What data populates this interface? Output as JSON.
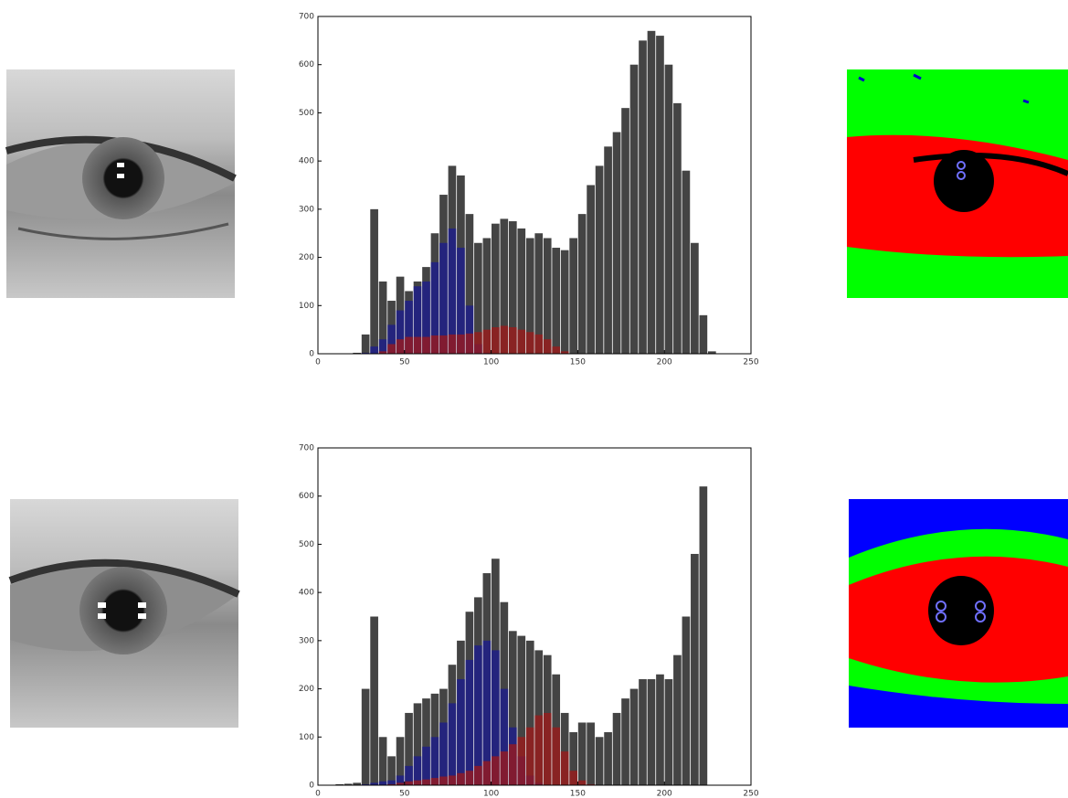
{
  "chart_data": [
    {
      "type": "histogram",
      "bins": [
        0,
        5,
        10,
        15,
        20,
        25,
        30,
        35,
        40,
        45,
        50,
        55,
        60,
        65,
        70,
        75,
        80,
        85,
        90,
        95,
        100,
        105,
        110,
        115,
        120,
        125,
        130,
        135,
        140,
        145,
        150,
        155,
        160,
        165,
        170,
        175,
        180,
        185,
        190,
        195,
        200,
        205,
        210,
        215,
        220,
        225,
        230,
        235,
        240,
        245,
        250
      ],
      "series": [
        {
          "color": "#3a3a3a",
          "values": [
            0,
            0,
            0,
            0,
            2,
            40,
            300,
            150,
            110,
            160,
            130,
            150,
            180,
            250,
            330,
            390,
            370,
            290,
            230,
            240,
            270,
            280,
            275,
            260,
            240,
            250,
            240,
            220,
            215,
            240,
            290,
            350,
            390,
            430,
            460,
            510,
            600,
            650,
            670,
            660,
            600,
            520,
            380,
            230,
            80,
            5,
            0,
            0,
            0,
            0
          ]
        },
        {
          "color": "#1a1a90",
          "values": [
            0,
            0,
            0,
            0,
            0,
            2,
            15,
            30,
            60,
            90,
            110,
            140,
            150,
            190,
            230,
            260,
            220,
            100,
            20,
            2,
            0,
            0,
            0,
            0,
            0,
            0,
            0,
            0,
            0,
            0,
            0,
            0,
            0,
            0,
            0,
            0,
            0,
            0,
            0,
            0,
            0,
            0,
            0,
            0,
            0,
            0,
            0,
            0,
            0,
            0
          ]
        },
        {
          "color": "#a01818",
          "values": [
            0,
            0,
            0,
            0,
            0,
            0,
            0,
            5,
            20,
            30,
            35,
            35,
            35,
            38,
            38,
            40,
            40,
            42,
            45,
            50,
            55,
            58,
            55,
            50,
            45,
            40,
            30,
            15,
            5,
            0,
            0,
            0,
            0,
            0,
            0,
            0,
            0,
            0,
            0,
            0,
            0,
            0,
            0,
            0,
            0,
            0,
            0,
            0,
            0,
            0
          ]
        }
      ],
      "xlim": [
        0,
        250
      ],
      "xticks": [
        0,
        50,
        100,
        150,
        200,
        250
      ],
      "ylim": [
        0,
        700
      ],
      "yticks": [
        0,
        100,
        200,
        300,
        400,
        500,
        600,
        700
      ]
    },
    {
      "type": "histogram",
      "bins": [
        0,
        5,
        10,
        15,
        20,
        25,
        30,
        35,
        40,
        45,
        50,
        55,
        60,
        65,
        70,
        75,
        80,
        85,
        90,
        95,
        100,
        105,
        110,
        115,
        120,
        125,
        130,
        135,
        140,
        145,
        150,
        155,
        160,
        165,
        170,
        175,
        180,
        185,
        190,
        195,
        200,
        205,
        210,
        215,
        220,
        225,
        230,
        235,
        240,
        245,
        250
      ],
      "series": [
        {
          "color": "#3a3a3a",
          "values": [
            0,
            0,
            2,
            3,
            5,
            200,
            350,
            100,
            60,
            100,
            150,
            170,
            180,
            190,
            200,
            250,
            300,
            360,
            390,
            440,
            470,
            380,
            320,
            310,
            300,
            280,
            270,
            230,
            150,
            110,
            130,
            130,
            100,
            110,
            150,
            180,
            200,
            220,
            220,
            230,
            220,
            270,
            350,
            480,
            620,
            0,
            0,
            0,
            0,
            0
          ]
        },
        {
          "color": "#1a1a90",
          "values": [
            0,
            0,
            0,
            0,
            0,
            2,
            5,
            8,
            10,
            20,
            40,
            60,
            80,
            100,
            130,
            170,
            220,
            260,
            290,
            300,
            280,
            200,
            120,
            60,
            20,
            5,
            0,
            0,
            0,
            0,
            0,
            0,
            0,
            0,
            0,
            0,
            0,
            0,
            0,
            0,
            0,
            0,
            0,
            0,
            0,
            0,
            0,
            0,
            0,
            0
          ]
        },
        {
          "color": "#a01818",
          "values": [
            0,
            0,
            0,
            0,
            0,
            0,
            0,
            0,
            2,
            5,
            8,
            10,
            12,
            15,
            18,
            20,
            25,
            30,
            40,
            50,
            60,
            70,
            85,
            100,
            120,
            145,
            150,
            120,
            70,
            30,
            10,
            2,
            0,
            0,
            0,
            0,
            0,
            0,
            0,
            0,
            0,
            0,
            0,
            0,
            0,
            0,
            0,
            0,
            0,
            0
          ]
        }
      ],
      "xlim": [
        0,
        250
      ],
      "xticks": [
        0,
        50,
        100,
        150,
        200,
        250
      ],
      "ylim": [
        0,
        700
      ],
      "yticks": [
        0,
        100,
        200,
        300,
        400,
        500,
        600,
        700
      ]
    }
  ]
}
